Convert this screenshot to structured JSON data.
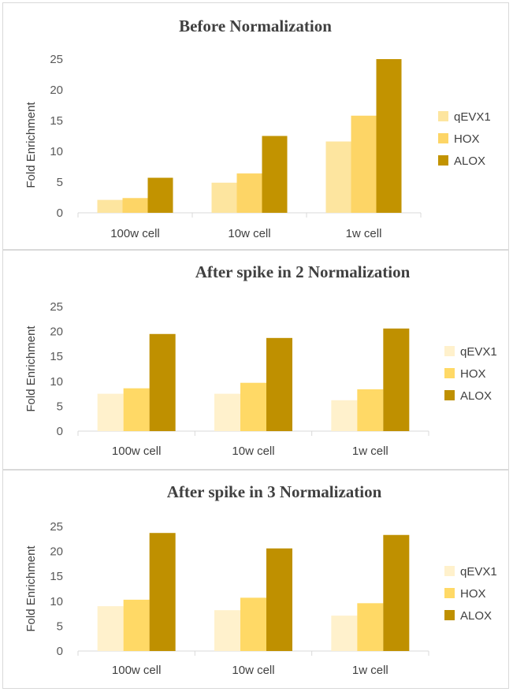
{
  "colors": {
    "qEVX1_panel1": "#fde59f",
    "HOX_panel1": "#fdd566",
    "ALOX_panel1": "#c29300",
    "qEVX1_light": "#fff1cc",
    "HOX_light": "#ffd966",
    "ALOX_light": "#bf9000",
    "axis": "#d9d9d9",
    "text": "#404040",
    "title": "#404040"
  },
  "chart_data": [
    {
      "type": "bar",
      "title": "Before Normalization",
      "ylabel": "Fold Enrichment",
      "xlabel": "",
      "categories": [
        "100w cell",
        "10w cell",
        "1w cell"
      ],
      "yticks": [
        "0",
        "5",
        "10",
        "15",
        "20",
        "25"
      ],
      "ylim": [
        0,
        25
      ],
      "grid": false,
      "legend_position": "right",
      "series": [
        {
          "name": "qEVX1",
          "values": [
            2.1,
            4.9,
            11.6
          ]
        },
        {
          "name": "HOX",
          "values": [
            2.4,
            6.4,
            15.8
          ]
        },
        {
          "name": "ALOX",
          "values": [
            5.7,
            12.5,
            25.0
          ]
        }
      ]
    },
    {
      "type": "bar",
      "title": "After spike in 2 Normalization",
      "ylabel": "Fold Enrichment",
      "xlabel": "",
      "categories": [
        "100w cell",
        "10w cell",
        "1w cell"
      ],
      "yticks": [
        "0",
        "5",
        "10",
        "15",
        "20",
        "25"
      ],
      "ylim": [
        0,
        25
      ],
      "grid": false,
      "legend_position": "right",
      "series": [
        {
          "name": "qEVX1",
          "values": [
            7.5,
            7.5,
            6.2
          ]
        },
        {
          "name": "HOX",
          "values": [
            8.6,
            9.7,
            8.4
          ]
        },
        {
          "name": "ALOX",
          "values": [
            19.5,
            18.7,
            20.6
          ]
        }
      ]
    },
    {
      "type": "bar",
      "title": "After spike in 3 Normalization",
      "ylabel": "Fold Enrichment",
      "xlabel": "",
      "categories": [
        "100w cell",
        "10w cell",
        "1w cell"
      ],
      "yticks": [
        "0",
        "5",
        "10",
        "15",
        "20",
        "25"
      ],
      "ylim": [
        0,
        25
      ],
      "grid": false,
      "legend_position": "right",
      "series": [
        {
          "name": "qEVX1",
          "values": [
            9.0,
            8.2,
            7.1
          ]
        },
        {
          "name": "HOX",
          "values": [
            10.3,
            10.7,
            9.6
          ]
        },
        {
          "name": "ALOX",
          "values": [
            23.7,
            20.6,
            23.3
          ]
        }
      ]
    }
  ]
}
